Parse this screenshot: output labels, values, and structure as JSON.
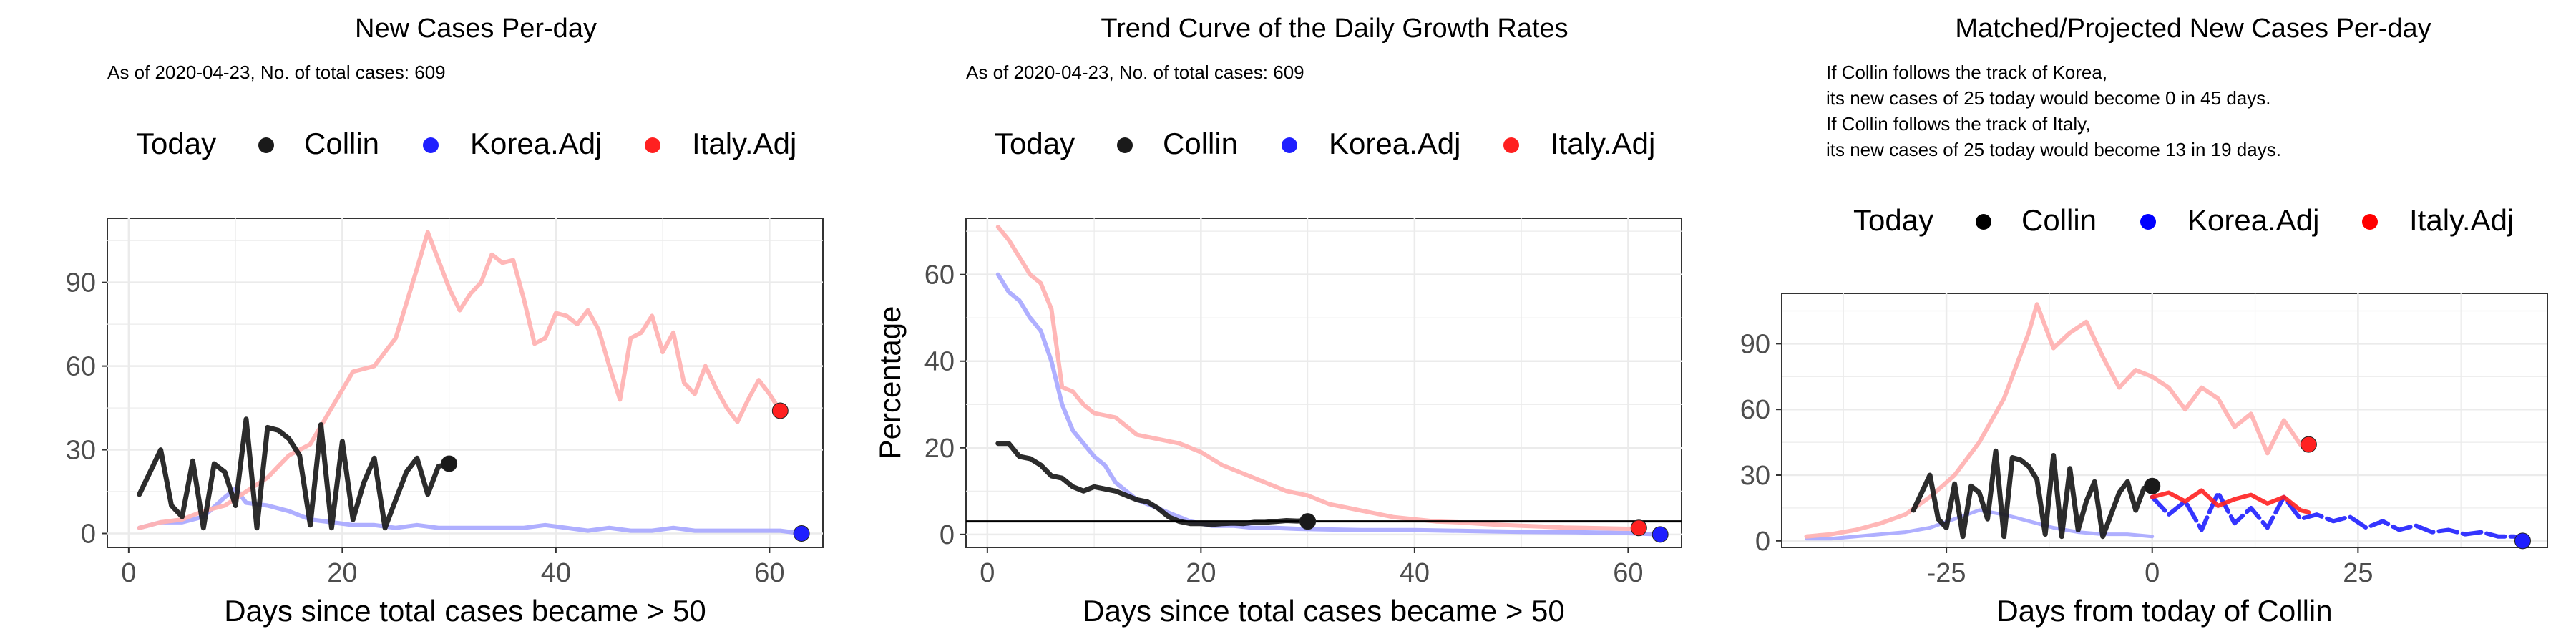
{
  "colors": {
    "collin": "#1a1a1a",
    "korea": "#1f1fff",
    "korea_faded": "#a6a6ff",
    "italy": "#ff2020",
    "italy_faded": "#ffb3b3",
    "grid": "#ebebeb",
    "panel_border": "#333333"
  },
  "legend": {
    "today_label": "Today",
    "collin_label": "Collin",
    "korea_label": "Korea.Adj",
    "italy_label": "Italy.Adj"
  },
  "panels": {
    "cases": {
      "title": "New Cases Per-day",
      "subtitle": "As of 2020-04-23, No. of total cases: 609",
      "xlabel": "Days since total cases became > 50"
    },
    "growth": {
      "title": "Trend Curve of the Daily Growth Rates",
      "subtitle": "As of 2020-04-23, No. of total cases: 609",
      "xlabel": "Days since total cases became > 50",
      "ylabel": "Percentage"
    },
    "projected": {
      "title": "Matched/Projected New Cases Per-day",
      "note_lines": [
        "If Collin follows the track of Korea,",
        "its new cases of 25 today would become 0 in 45 days.",
        "If Collin follows the track of Italy,",
        "its new cases of 25 today would become 13 in 19 days."
      ],
      "xlabel": "Days from today of Collin"
    }
  },
  "chart_data": [
    {
      "type": "line",
      "title": "New Cases Per-day",
      "subtitle": "As of 2020-04-23, No. of total cases: 609",
      "xlabel": "Days since total cases became > 50",
      "ylabel": "",
      "xlim": [
        -2,
        65
      ],
      "ylim": [
        -5,
        113
      ],
      "xticks": [
        0,
        20,
        40,
        60
      ],
      "yticks": [
        0,
        30,
        60,
        90
      ],
      "grid": true,
      "legend_position": "top",
      "series": [
        {
          "name": "Collin",
          "x": [
            1,
            2,
            3,
            4,
            5,
            6,
            7,
            8,
            9,
            10,
            11,
            12,
            13,
            14,
            15,
            16,
            17,
            18,
            19,
            20,
            21,
            22,
            23,
            24,
            25,
            26,
            27,
            28,
            29,
            30
          ],
          "y": [
            14,
            22,
            30,
            10,
            6,
            26,
            2,
            25,
            22,
            10,
            41,
            2,
            38,
            37,
            34,
            28,
            3,
            39,
            2,
            33,
            5,
            18,
            27,
            2,
            12,
            22,
            27,
            14,
            24,
            25
          ]
        },
        {
          "name": "Korea.Adj",
          "x": [
            1,
            3,
            5,
            7,
            9,
            10,
            11,
            13,
            15,
            17,
            19,
            21,
            23,
            25,
            27,
            29,
            31,
            33,
            35,
            37,
            39,
            41,
            43,
            45,
            47,
            49,
            51,
            53,
            55,
            57,
            59,
            61,
            63
          ],
          "y": [
            2,
            4,
            4,
            6,
            13,
            16,
            11,
            10,
            8,
            5,
            4,
            3,
            3,
            2,
            3,
            2,
            2,
            2,
            2,
            2,
            3,
            2,
            1,
            2,
            1,
            1,
            2,
            1,
            1,
            1,
            1,
            1,
            0
          ]
        },
        {
          "name": "Italy.Adj",
          "x": [
            1,
            3,
            5,
            7,
            9,
            11,
            13,
            15,
            17,
            19,
            21,
            23,
            25,
            27,
            28,
            30,
            31,
            32,
            33,
            34,
            35,
            36,
            37,
            38,
            39,
            40,
            41,
            42,
            43,
            44,
            45,
            46,
            47,
            48,
            49,
            50,
            51,
            52,
            53,
            54,
            55,
            56,
            57,
            58,
            59,
            60,
            61
          ],
          "y": [
            2,
            4,
            5,
            8,
            10,
            15,
            20,
            28,
            32,
            45,
            58,
            60,
            70,
            95,
            108,
            88,
            80,
            86,
            90,
            100,
            97,
            98,
            84,
            68,
            70,
            79,
            78,
            75,
            80,
            73,
            60,
            48,
            70,
            72,
            78,
            65,
            72,
            54,
            50,
            60,
            52,
            45,
            40,
            48,
            55,
            50,
            44
          ]
        }
      ],
      "today_points": [
        {
          "name": "Collin",
          "x": 30,
          "y": 25
        },
        {
          "name": "Korea.Adj",
          "x": 63,
          "y": 0
        },
        {
          "name": "Italy.Adj",
          "x": 61,
          "y": 44
        }
      ]
    },
    {
      "type": "line",
      "title": "Trend Curve of the Daily Growth Rates",
      "subtitle": "As of 2020-04-23, No. of total cases: 609",
      "xlabel": "Days since total cases became > 50",
      "ylabel": "Percentage",
      "xlim": [
        -2,
        65
      ],
      "ylim": [
        -3,
        73
      ],
      "xticks": [
        0,
        20,
        40,
        60
      ],
      "yticks": [
        0,
        20,
        40,
        60
      ],
      "grid": true,
      "legend_position": "top",
      "hline": 3,
      "series": [
        {
          "name": "Collin",
          "x": [
            1,
            2,
            3,
            4,
            5,
            6,
            7,
            8,
            9,
            10,
            11,
            12,
            13,
            14,
            15,
            16,
            17,
            18,
            19,
            20,
            21,
            22,
            23,
            24,
            25,
            26,
            27,
            28,
            29,
            30
          ],
          "y": [
            21,
            21,
            18,
            17.5,
            16,
            13.5,
            13,
            11,
            10,
            11,
            10.5,
            10,
            9,
            8,
            7.5,
            6,
            4,
            3,
            2.5,
            2.5,
            2.3,
            2.5,
            2.6,
            2.5,
            2.8,
            2.8,
            3,
            3.2,
            3.1,
            3.2
          ]
        },
        {
          "name": "Korea.Adj",
          "x": [
            1,
            2,
            3,
            4,
            5,
            6,
            7,
            8,
            9,
            10,
            11,
            12,
            13,
            14,
            15,
            17,
            19,
            21,
            23,
            25,
            27,
            29,
            31,
            35,
            40,
            45,
            50,
            55,
            60,
            63
          ],
          "y": [
            60,
            56,
            54,
            50,
            47,
            40,
            30,
            24,
            21,
            18,
            16,
            12,
            10,
            8,
            7,
            5,
            3,
            2,
            2,
            1.5,
            1.5,
            1.3,
            1.2,
            1,
            1,
            0.8,
            0.6,
            0.5,
            0.3,
            0
          ]
        },
        {
          "name": "Italy.Adj",
          "x": [
            1,
            2,
            3,
            4,
            5,
            6,
            7,
            8,
            9,
            10,
            12,
            14,
            16,
            18,
            20,
            22,
            24,
            26,
            28,
            30,
            32,
            34,
            36,
            38,
            40,
            42,
            44,
            46,
            48,
            50,
            52,
            54,
            56,
            58,
            60,
            61
          ],
          "y": [
            71,
            68,
            64,
            60,
            58,
            52,
            34,
            33,
            30,
            28,
            27,
            23,
            22,
            21,
            19,
            16,
            14,
            12,
            10,
            9,
            7,
            6,
            5,
            4,
            3.5,
            3,
            2.8,
            2.5,
            2.2,
            2,
            1.8,
            1.6,
            1.5,
            1.4,
            1.3,
            1.5
          ]
        }
      ],
      "today_points": [
        {
          "name": "Collin",
          "x": 30,
          "y": 3
        },
        {
          "name": "Korea.Adj",
          "x": 63,
          "y": 0
        },
        {
          "name": "Italy.Adj",
          "x": 61,
          "y": 1.5
        }
      ]
    },
    {
      "type": "line",
      "title": "Matched/Projected New Cases Per-day",
      "xlabel": "Days from today of Collin",
      "ylabel": "",
      "xlim": [
        -45,
        48
      ],
      "ylim": [
        -3,
        113
      ],
      "xticks": [
        -25,
        0,
        25
      ],
      "yticks": [
        0,
        30,
        60,
        90
      ],
      "grid": true,
      "legend_position": "top",
      "series": [
        {
          "name": "Collin",
          "x": [
            -29,
            -28,
            -27,
            -26,
            -25,
            -24,
            -23,
            -22,
            -21,
            -20,
            -19,
            -18,
            -17,
            -16,
            -15,
            -14,
            -13,
            -12,
            -11,
            -10,
            -9,
            -8,
            -7,
            -6,
            -5,
            -4,
            -3,
            -2,
            -1,
            0
          ],
          "y": [
            14,
            22,
            30,
            10,
            6,
            26,
            2,
            25,
            22,
            10,
            41,
            2,
            38,
            37,
            34,
            28,
            3,
            39,
            2,
            33,
            5,
            18,
            27,
            2,
            12,
            22,
            27,
            14,
            24,
            25
          ]
        },
        {
          "name": "Korea.Adj matched",
          "x": [
            -42,
            -39,
            -36,
            -33,
            -30,
            -27,
            -24,
            -21,
            -18,
            -15,
            -12,
            -9,
            -6,
            -3,
            0
          ],
          "y": [
            1,
            1,
            2,
            3,
            4,
            6,
            10,
            14,
            12,
            9,
            6,
            4,
            3,
            3,
            2
          ]
        },
        {
          "name": "Korea.Adj projected",
          "x": [
            0,
            2,
            4,
            6,
            8,
            10,
            12,
            14,
            16,
            18,
            20,
            22,
            24,
            26,
            28,
            30,
            32,
            34,
            36,
            38,
            40,
            42,
            44,
            45
          ],
          "y": [
            20,
            12,
            18,
            5,
            22,
            8,
            15,
            6,
            20,
            10,
            12,
            9,
            11,
            6,
            9,
            5,
            7,
            4,
            5,
            3,
            4,
            2,
            2,
            0
          ]
        },
        {
          "name": "Italy.Adj matched",
          "x": [
            -42,
            -39,
            -36,
            -33,
            -30,
            -27,
            -24,
            -21,
            -18,
            -15,
            -14,
            -12,
            -10,
            -8,
            -6,
            -4,
            -2,
            0,
            2,
            4,
            6,
            8,
            10,
            12,
            14,
            16,
            18
          ],
          "y": [
            2,
            3,
            5,
            8,
            12,
            20,
            30,
            45,
            65,
            95,
            108,
            88,
            95,
            100,
            84,
            70,
            78,
            75,
            70,
            60,
            70,
            65,
            52,
            58,
            40,
            55,
            44
          ]
        },
        {
          "name": "Italy.Adj projected",
          "x": [
            0,
            2,
            4,
            6,
            8,
            10,
            12,
            14,
            16,
            18,
            19
          ],
          "y": [
            20,
            22,
            18,
            23,
            16,
            19,
            21,
            17,
            20,
            14,
            13
          ]
        }
      ],
      "today_points": [
        {
          "name": "Collin",
          "x": 0,
          "y": 25
        },
        {
          "name": "Korea.Adj",
          "x": 45,
          "y": 0
        },
        {
          "name": "Italy.Adj",
          "x": 19,
          "y": 44
        }
      ]
    }
  ]
}
